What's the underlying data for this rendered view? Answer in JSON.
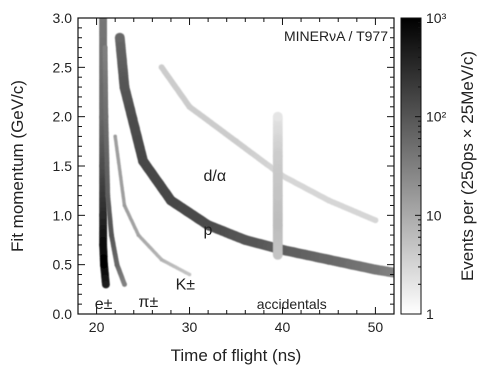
{
  "chart_data": {
    "type": "heatmap",
    "title": "",
    "experiment_label": "MINERνA / T977",
    "xlabel": "Time of flight (ns)",
    "ylabel": "Fit momentum (GeV/c)",
    "colorbar_label": "Events per (250ps × 25MeV/c)",
    "xlim": [
      18,
      52
    ],
    "ylim": [
      0,
      3.0
    ],
    "x_ticks": [
      20,
      30,
      40,
      50
    ],
    "y_ticks": [
      0.0,
      0.5,
      1.0,
      1.5,
      2.0,
      2.5,
      3.0
    ],
    "colorbar": {
      "scale": "log",
      "range": [
        1,
        1000
      ],
      "tick_labels": [
        "1",
        "10",
        "10²",
        "10³"
      ],
      "colormap": [
        "#ffffff",
        "#000000"
      ]
    },
    "annotations": [
      {
        "text": "e±",
        "x": 19.8,
        "y": 0.1
      },
      {
        "text": "π±",
        "x": 24.5,
        "y": 0.12
      },
      {
        "text": "K±",
        "x": 28.5,
        "y": 0.3
      },
      {
        "text": "p",
        "x": 31.5,
        "y": 0.85
      },
      {
        "text": "d/α",
        "x": 31.5,
        "y": 1.4
      },
      {
        "text": "accidentals",
        "x": 41,
        "y": 0.1
      }
    ],
    "series": [
      {
        "name": "e±",
        "points": [
          {
            "x": 20.7,
            "y": 3.0,
            "counts": 40
          },
          {
            "x": 20.7,
            "y": 2.0,
            "counts": 60
          },
          {
            "x": 20.7,
            "y": 1.5,
            "counts": 120
          },
          {
            "x": 20.7,
            "y": 1.0,
            "counts": 300
          },
          {
            "x": 20.7,
            "y": 0.7,
            "counts": 700
          },
          {
            "x": 20.8,
            "y": 0.5,
            "counts": 900
          },
          {
            "x": 21.0,
            "y": 0.3,
            "counts": 500
          }
        ]
      },
      {
        "name": "π±",
        "points": [
          {
            "x": 20.9,
            "y": 2.7,
            "counts": 30
          },
          {
            "x": 21.0,
            "y": 2.0,
            "counts": 50
          },
          {
            "x": 21.2,
            "y": 1.2,
            "counts": 80
          },
          {
            "x": 21.6,
            "y": 0.8,
            "counts": 100
          },
          {
            "x": 22.2,
            "y": 0.5,
            "counts": 60
          },
          {
            "x": 23.0,
            "y": 0.3,
            "counts": 30
          }
        ]
      },
      {
        "name": "K±",
        "points": [
          {
            "x": 22.0,
            "y": 1.8,
            "counts": 15
          },
          {
            "x": 23.0,
            "y": 1.1,
            "counts": 15
          },
          {
            "x": 24.5,
            "y": 0.8,
            "counts": 12
          },
          {
            "x": 27.0,
            "y": 0.55,
            "counts": 8
          },
          {
            "x": 30.0,
            "y": 0.4,
            "counts": 5
          }
        ]
      },
      {
        "name": "p",
        "points": [
          {
            "x": 22.5,
            "y": 2.8,
            "counts": 60
          },
          {
            "x": 23.0,
            "y": 2.3,
            "counts": 100
          },
          {
            "x": 25.0,
            "y": 1.55,
            "counts": 150
          },
          {
            "x": 28.0,
            "y": 1.15,
            "counts": 150
          },
          {
            "x": 32.0,
            "y": 0.9,
            "counts": 130
          },
          {
            "x": 36.0,
            "y": 0.75,
            "counts": 100
          },
          {
            "x": 40.0,
            "y": 0.65,
            "counts": 80
          },
          {
            "x": 45.0,
            "y": 0.55,
            "counts": 60
          },
          {
            "x": 50.0,
            "y": 0.45,
            "counts": 40
          },
          {
            "x": 52.0,
            "y": 0.42,
            "counts": 30
          }
        ]
      },
      {
        "name": "d/α",
        "points": [
          {
            "x": 27.0,
            "y": 2.5,
            "counts": 4
          },
          {
            "x": 30.0,
            "y": 2.1,
            "counts": 4
          },
          {
            "x": 35.0,
            "y": 1.75,
            "counts": 4
          },
          {
            "x": 40.0,
            "y": 1.4,
            "counts": 3
          },
          {
            "x": 45.0,
            "y": 1.15,
            "counts": 3
          },
          {
            "x": 50.0,
            "y": 0.95,
            "counts": 3
          }
        ]
      },
      {
        "name": "accidentals",
        "points": [
          {
            "x": 39.5,
            "y": 2.0,
            "counts": 2
          },
          {
            "x": 39.5,
            "y": 1.6,
            "counts": 4
          },
          {
            "x": 39.5,
            "y": 1.2,
            "counts": 5
          },
          {
            "x": 39.5,
            "y": 0.9,
            "counts": 6
          },
          {
            "x": 39.5,
            "y": 0.6,
            "counts": 5
          }
        ]
      }
    ]
  }
}
